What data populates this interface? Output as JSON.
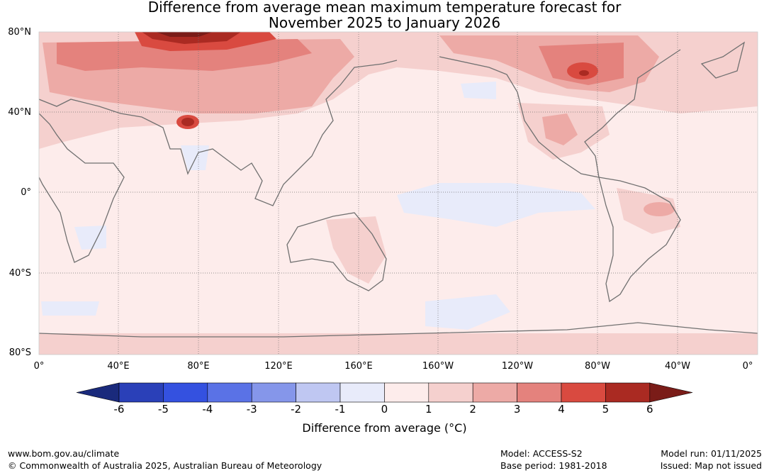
{
  "title_line1": "Difference from average mean maximum temperature forecast for",
  "title_line2": "November 2025 to January 2026",
  "lat_labels": [
    "80°N",
    "40°N",
    "0°",
    "40°S",
    "80°S"
  ],
  "lon_labels": [
    "0°",
    "40°E",
    "80°E",
    "120°E",
    "160°E",
    "160°W",
    "120°W",
    "80°W",
    "40°W",
    "0°"
  ],
  "colorbar": {
    "ticks": [
      "-6",
      "-5",
      "-4",
      "-3",
      "-2",
      "-1",
      "0",
      "1",
      "2",
      "3",
      "4",
      "5",
      "6"
    ],
    "colors": [
      "#1a2a7c",
      "#2a40b8",
      "#3451e0",
      "#5a72e6",
      "#8596ea",
      "#bfc7f2",
      "#e8ebfa",
      "#fdeceb",
      "#f5d0ce",
      "#edaaa6",
      "#e4827d",
      "#d94a40",
      "#aa2a22",
      "#7a1c18"
    ],
    "title": "Difference from average (°C)"
  },
  "footer": {
    "url": "www.bom.gov.au/climate",
    "copyright": "© Commonwealth of Australia 2025, Australian Bureau of Meteorology",
    "model": "Model: ACCESS-S2",
    "base_period": "Base period: 1981-2018",
    "model_run": "Model run: 01/11/2025",
    "issued": "Issued: Map not issued"
  }
}
